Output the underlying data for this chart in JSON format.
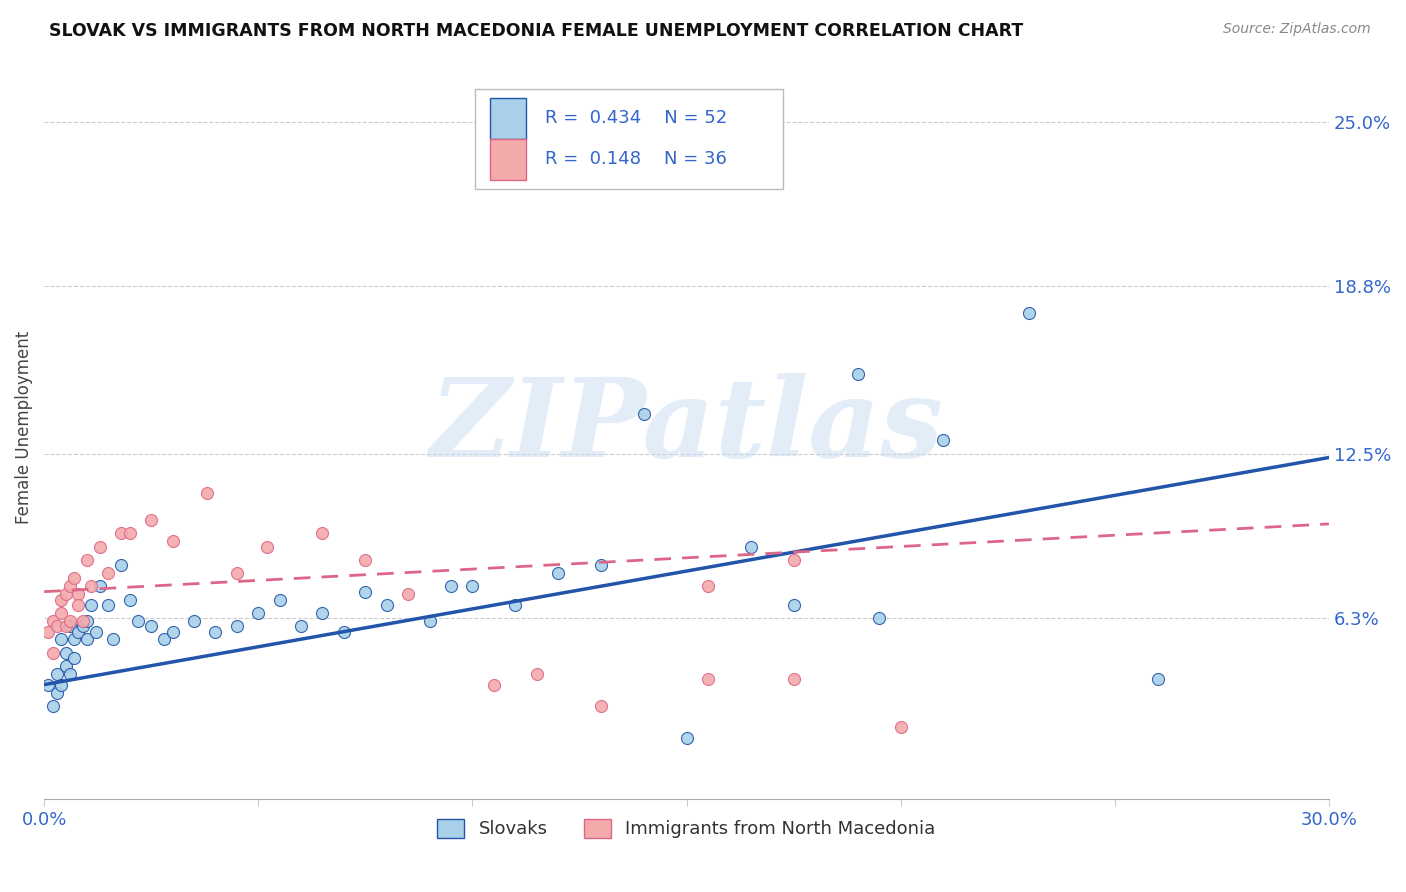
{
  "title": "SLOVAK VS IMMIGRANTS FROM NORTH MACEDONIA FEMALE UNEMPLOYMENT CORRELATION CHART",
  "source": "Source: ZipAtlas.com",
  "ylabel": "Female Unemployment",
  "xlim": [
    0.0,
    0.3
  ],
  "ylim": [
    -0.005,
    0.275
  ],
  "yticks": [
    0.063,
    0.125,
    0.188,
    0.25
  ],
  "ytick_labels": [
    "6.3%",
    "12.5%",
    "18.8%",
    "25.0%"
  ],
  "xticks": [
    0.0,
    0.05,
    0.1,
    0.15,
    0.2,
    0.25,
    0.3
  ],
  "xtick_labels": [
    "0.0%",
    "",
    "",
    "",
    "",
    "",
    "30.0%"
  ],
  "color_slovak": "#A8D0E8",
  "color_imm": "#F4AAAA",
  "color_line_slovak": "#2255AA",
  "color_line_imm": "#DD6688",
  "background_color": "#FFFFFF",
  "watermark": "ZIPatlas",
  "slovaks_x": [
    0.001,
    0.002,
    0.003,
    0.003,
    0.004,
    0.004,
    0.005,
    0.005,
    0.006,
    0.006,
    0.007,
    0.007,
    0.008,
    0.009,
    0.01,
    0.01,
    0.011,
    0.012,
    0.013,
    0.015,
    0.016,
    0.018,
    0.02,
    0.022,
    0.025,
    0.028,
    0.03,
    0.035,
    0.04,
    0.045,
    0.05,
    0.055,
    0.06,
    0.065,
    0.07,
    0.075,
    0.08,
    0.09,
    0.095,
    0.1,
    0.11,
    0.12,
    0.13,
    0.14,
    0.15,
    0.165,
    0.175,
    0.19,
    0.195,
    0.21,
    0.23,
    0.26
  ],
  "slovaks_y": [
    0.038,
    0.03,
    0.035,
    0.042,
    0.038,
    0.055,
    0.05,
    0.045,
    0.06,
    0.042,
    0.055,
    0.048,
    0.058,
    0.06,
    0.062,
    0.055,
    0.068,
    0.058,
    0.075,
    0.068,
    0.055,
    0.083,
    0.07,
    0.062,
    0.06,
    0.055,
    0.058,
    0.062,
    0.058,
    0.06,
    0.065,
    0.07,
    0.06,
    0.065,
    0.058,
    0.073,
    0.068,
    0.062,
    0.075,
    0.075,
    0.068,
    0.08,
    0.083,
    0.14,
    0.018,
    0.09,
    0.068,
    0.155,
    0.063,
    0.13,
    0.178,
    0.04
  ],
  "imm_x": [
    0.001,
    0.002,
    0.002,
    0.003,
    0.004,
    0.004,
    0.005,
    0.005,
    0.006,
    0.006,
    0.007,
    0.008,
    0.008,
    0.009,
    0.01,
    0.011,
    0.013,
    0.015,
    0.018,
    0.02,
    0.025,
    0.03,
    0.038,
    0.045,
    0.052,
    0.065,
    0.075,
    0.085,
    0.105,
    0.115,
    0.13,
    0.155,
    0.155,
    0.175,
    0.175,
    0.2
  ],
  "imm_y": [
    0.058,
    0.05,
    0.062,
    0.06,
    0.07,
    0.065,
    0.072,
    0.06,
    0.075,
    0.062,
    0.078,
    0.072,
    0.068,
    0.062,
    0.085,
    0.075,
    0.09,
    0.08,
    0.095,
    0.095,
    0.1,
    0.092,
    0.11,
    0.08,
    0.09,
    0.095,
    0.085,
    0.072,
    0.038,
    0.042,
    0.03,
    0.075,
    0.04,
    0.085,
    0.04,
    0.022
  ]
}
